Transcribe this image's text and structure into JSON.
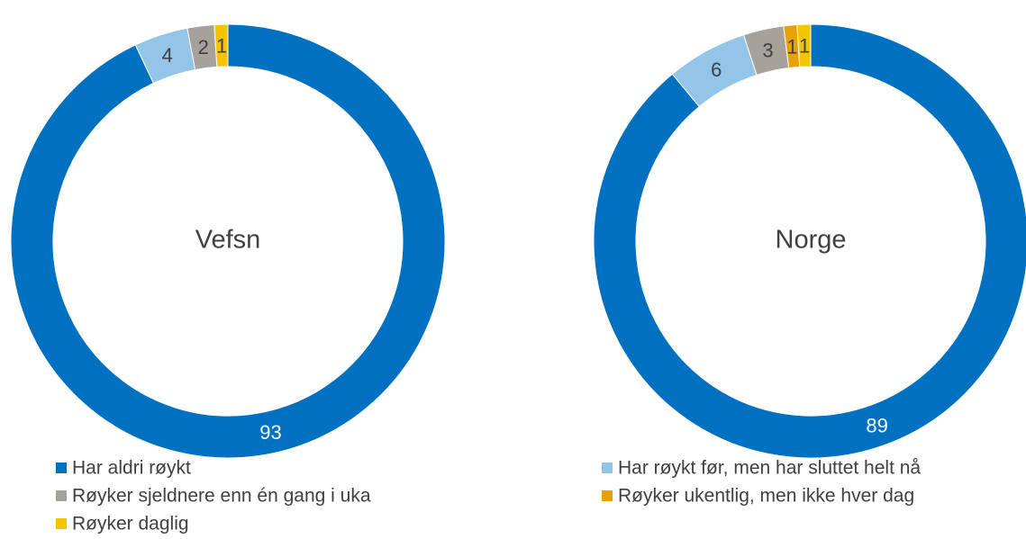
{
  "chart_data": [
    {
      "type": "pie",
      "title": "Vefsn",
      "categories": [
        "Har aldri røykt",
        "Har røykt før, men har sluttet helt nå",
        "Røyker sjeldnere enn én gang i uka",
        "Røyker ukentlig, men ikke hver dag",
        "Røyker daglig"
      ],
      "values": [
        93,
        4,
        2,
        null,
        1
      ],
      "colors": [
        "#0070c0",
        "#92c5e8",
        "#a6a19a",
        "#e8a200",
        "#f2c500"
      ]
    },
    {
      "type": "pie",
      "title": "Norge",
      "categories": [
        "Har aldri røykt",
        "Har røykt før, men har sluttet helt nå",
        "Røyker sjeldnere enn én gang i uka",
        "Røyker ukentlig, men ikke hver dag",
        "Røyker daglig"
      ],
      "values": [
        89,
        6,
        3,
        1,
        1
      ],
      "colors": [
        "#0070c0",
        "#92c5e8",
        "#a6a19a",
        "#e8a200",
        "#f2c500"
      ]
    }
  ]
}
